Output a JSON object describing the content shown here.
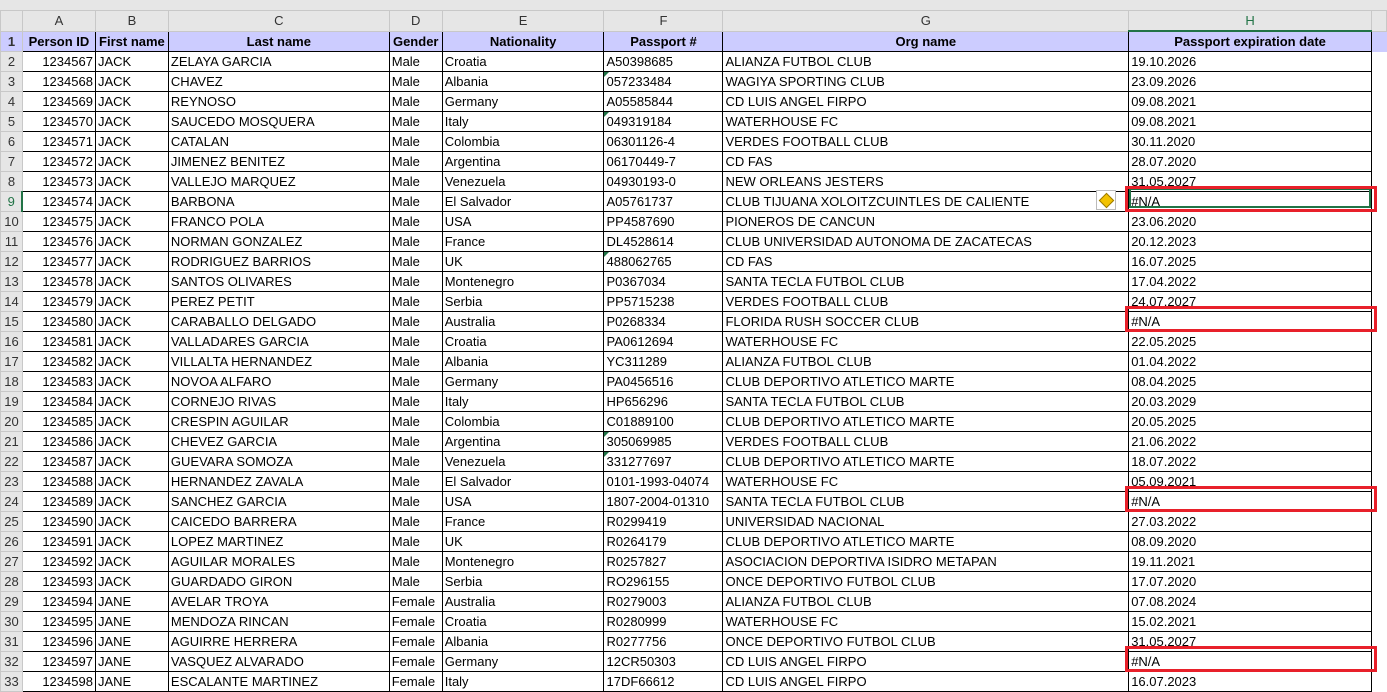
{
  "columns": [
    "A",
    "B",
    "C",
    "D",
    "E",
    "F",
    "G",
    "H"
  ],
  "selected_column": "H",
  "selected_row": 9,
  "headers": [
    "Person ID",
    "First name",
    "Last name",
    "Gender",
    "Nationality",
    "Passport #",
    "Org name",
    "Passport expiration date"
  ],
  "header_fill": "#ccccff",
  "highlight_color": "#e8202a",
  "highlighted_rows": [
    9,
    15,
    24,
    32
  ],
  "text_number_flag_rows": [
    3,
    5,
    12,
    21,
    22
  ],
  "rows": [
    [
      "1234567",
      "JACK",
      "ZELAYA GARCIA",
      "Male",
      "Croatia",
      "A50398685",
      "ALIANZA FUTBOL CLUB",
      "19.10.2026"
    ],
    [
      "1234568",
      "JACK",
      "CHAVEZ",
      "Male",
      "Albania",
      "057233484",
      "WAGIYA SPORTING CLUB",
      "23.09.2026"
    ],
    [
      "1234569",
      "JACK",
      "REYNOSO",
      "Male",
      "Germany",
      "A05585844",
      "CD LUIS ANGEL FIRPO",
      "09.08.2021"
    ],
    [
      "1234570",
      "JACK",
      "SAUCEDO MOSQUERA",
      "Male",
      "Italy",
      "049319184",
      "WATERHOUSE FC",
      "09.08.2021"
    ],
    [
      "1234571",
      "JACK",
      "CATALAN",
      "Male",
      "Colombia",
      "06301126-4",
      "VERDES FOOTBALL CLUB",
      "30.11.2020"
    ],
    [
      "1234572",
      "JACK",
      "JIMENEZ BENITEZ",
      "Male",
      "Argentina",
      "06170449-7",
      "CD FAS",
      "28.07.2020"
    ],
    [
      "1234573",
      "JACK",
      "VALLEJO MARQUEZ",
      "Male",
      "Venezuela",
      "04930193-0",
      "NEW ORLEANS JESTERS",
      "31.05.2027"
    ],
    [
      "1234574",
      "JACK",
      "BARBONA",
      "Male",
      "El Salvador",
      "A05761737",
      "CLUB TIJUANA XOLOITZCUINTLES DE CALIENTE",
      "#N/A"
    ],
    [
      "1234575",
      "JACK",
      "FRANCO POLA",
      "Male",
      "USA",
      "PP4587690",
      "PIONEROS DE CANCUN",
      "23.06.2020"
    ],
    [
      "1234576",
      "JACK",
      "NORMAN GONZALEZ",
      "Male",
      "France",
      "DL4528614",
      "CLUB UNIVERSIDAD AUTONOMA DE ZACATECAS",
      "20.12.2023"
    ],
    [
      "1234577",
      "JACK",
      "RODRIGUEZ BARRIOS",
      "Male",
      "UK",
      "488062765",
      "CD FAS",
      "16.07.2025"
    ],
    [
      "1234578",
      "JACK",
      "SANTOS OLIVARES",
      "Male",
      "Montenegro",
      "P0367034",
      "SANTA TECLA FUTBOL CLUB",
      "17.04.2022"
    ],
    [
      "1234579",
      "JACK",
      "PEREZ PETIT",
      "Male",
      "Serbia",
      "PP5715238",
      "VERDES FOOTBALL CLUB",
      "24.07.2027"
    ],
    [
      "1234580",
      "JACK",
      "CARABALLO DELGADO",
      "Male",
      "Australia",
      "P0268334",
      "FLORIDA RUSH SOCCER CLUB",
      "#N/A"
    ],
    [
      "1234581",
      "JACK",
      "VALLADARES GARCIA",
      "Male",
      "Croatia",
      "PA0612694",
      "WATERHOUSE FC",
      "22.05.2025"
    ],
    [
      "1234582",
      "JACK",
      "VILLALTA HERNANDEZ",
      "Male",
      "Albania",
      "YC311289",
      "ALIANZA FUTBOL CLUB",
      "01.04.2022"
    ],
    [
      "1234583",
      "JACK",
      "NOVOA ALFARO",
      "Male",
      "Germany",
      "PA0456516",
      "CLUB DEPORTIVO ATLETICO MARTE",
      "08.04.2025"
    ],
    [
      "1234584",
      "JACK",
      "CORNEJO RIVAS",
      "Male",
      "Italy",
      "HP656296",
      "SANTA TECLA FUTBOL CLUB",
      "20.03.2029"
    ],
    [
      "1234585",
      "JACK",
      "CRESPIN AGUILAR",
      "Male",
      "Colombia",
      "C01889100",
      "CLUB DEPORTIVO ATLETICO MARTE",
      "20.05.2025"
    ],
    [
      "1234586",
      "JACK",
      "CHEVEZ GARCIA",
      "Male",
      "Argentina",
      "305069985",
      "VERDES FOOTBALL CLUB",
      "21.06.2022"
    ],
    [
      "1234587",
      "JACK",
      "GUEVARA SOMOZA",
      "Male",
      "Venezuela",
      "331277697",
      "CLUB DEPORTIVO ATLETICO MARTE",
      "18.07.2022"
    ],
    [
      "1234588",
      "JACK",
      "HERNANDEZ ZAVALA",
      "Male",
      "El Salvador",
      "0101-1993-04074",
      "WATERHOUSE FC",
      "05.09.2021"
    ],
    [
      "1234589",
      "JACK",
      "SANCHEZ GARCIA",
      "Male",
      "USA",
      "1807-2004-01310",
      "SANTA TECLA FUTBOL CLUB",
      "#N/A"
    ],
    [
      "1234590",
      "JACK",
      "CAICEDO BARRERA",
      "Male",
      "France",
      "R0299419",
      "UNIVERSIDAD NACIONAL",
      "27.03.2022"
    ],
    [
      "1234591",
      "JACK",
      "LOPEZ MARTINEZ",
      "Male",
      "UK",
      "R0264179",
      "CLUB DEPORTIVO ATLETICO MARTE",
      "08.09.2020"
    ],
    [
      "1234592",
      "JACK",
      "AGUILAR MORALES",
      "Male",
      "Montenegro",
      "R0257827",
      "ASOCIACION DEPORTIVA ISIDRO METAPAN",
      "19.11.2021"
    ],
    [
      "1234593",
      "JACK",
      "GUARDADO GIRON",
      "Male",
      "Serbia",
      "RO296155",
      "ONCE DEPORTIVO FUTBOL CLUB",
      "17.07.2020"
    ],
    [
      "1234594",
      "JANE",
      "AVELAR TROYA",
      "Female",
      "Australia",
      "R0279003",
      "ALIANZA FUTBOL CLUB",
      "07.08.2024"
    ],
    [
      "1234595",
      "JANE",
      "MENDOZA RINCAN",
      "Female",
      "Croatia",
      "R0280999",
      "WATERHOUSE FC",
      "15.02.2021"
    ],
    [
      "1234596",
      "JANE",
      "AGUIRRE HERRERA",
      "Female",
      "Albania",
      "R0277756",
      "ONCE DEPORTIVO FUTBOL CLUB",
      "31.05.2027"
    ],
    [
      "1234597",
      "JANE",
      "VASQUEZ ALVARADO",
      "Female",
      "Germany",
      "12CR50303",
      "CD LUIS ANGEL FIRPO",
      "#N/A"
    ],
    [
      "1234598",
      "JANE",
      "ESCALANTE MARTINEZ",
      "Female",
      "Italy",
      "17DF66612",
      "CD LUIS ANGEL FIRPO",
      "16.07.2023"
    ]
  ]
}
